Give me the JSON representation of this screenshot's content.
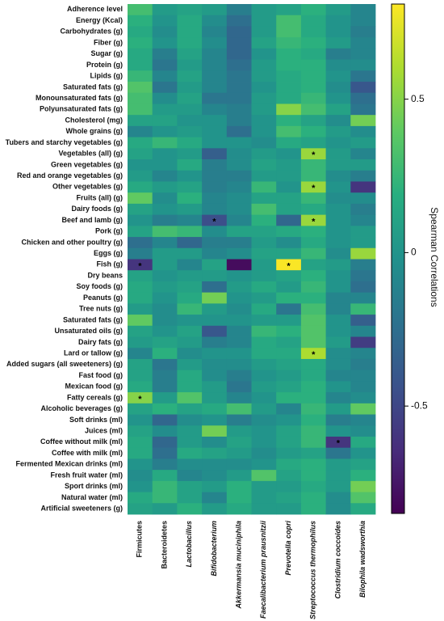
{
  "chart_data": {
    "type": "heatmap",
    "colormap": "viridis",
    "colorbar_label": "Spearman Correlations",
    "zlim": [
      -0.85,
      0.81
    ],
    "zticks": [
      0.5,
      0,
      -0.5
    ],
    "x": [
      "Firmicutes",
      "Bacteroidetes",
      "Lactobacillus",
      "Bifidobacterium",
      "Akkermansia muciniphila",
      "Faecalibacterium prausnitzii",
      "Prevotella copri",
      "Streptococcus thermophilus",
      "Clostridium coccoides",
      "Bilophila wadsworthia"
    ],
    "y": [
      "Adherence level",
      "Energy (Kcal)",
      "Carbohydrates (g)",
      "Fiber (g)",
      "Sugar (g)",
      "Protein (g)",
      "Lipids (g)",
      "Saturated fats (g)",
      "Monounsaturated fats (g)",
      "Polyunsaturated fats (g)",
      "Cholesterol (mg)",
      "Whole grains (g)",
      "Tubers and starchy vegetables (g)",
      "Vegetables (all) (g)",
      "Green vegetables (g)",
      "Red and orange vegetables (g)",
      "Other vegetables (g)",
      "Fruits (all) (g)",
      "Dairy foods (g)",
      "Beef and lamb (g)",
      "Pork (g)",
      "Chicken and other poultry (g)",
      "Eggs (g)",
      "Fish (g)",
      "Dry beans",
      "Soy foods (g)",
      "Peanuts (g)",
      "Tree nuts (g)",
      "Saturated fats (g)",
      "Unsaturated oils (g)",
      "Dairy fats (g)",
      "Lard or tallow (g)",
      "Added sugars (all sweeteners) (g)",
      "Fast food (g)",
      "Mexican food (g)",
      "Fatty cereals (g)",
      "Alcoholic beverages (g)",
      "Soft drinks (ml)",
      "Juices (ml)",
      "Coffee without milk (ml)",
      "Coffee with milk (ml)",
      "Fermented Mexican drinks (ml)",
      "Fresh fruit water (ml)",
      "Sport drinks (ml)",
      "Natural water (ml)",
      "Artificial sweeteners (g)"
    ],
    "values": [
      [
        0.3,
        0.05,
        0.1,
        0.05,
        -0.15,
        0.05,
        0.1,
        0.2,
        0.05,
        -0.1
      ],
      [
        0.2,
        0,
        0.15,
        -0.05,
        -0.25,
        0.05,
        0.3,
        0.15,
        0,
        -0.1
      ],
      [
        0.15,
        -0.05,
        0.15,
        -0.1,
        -0.3,
        0.05,
        0.3,
        0.15,
        0,
        -0.15
      ],
      [
        0.2,
        0,
        0.15,
        -0.05,
        -0.3,
        0.1,
        0.25,
        0.2,
        0.05,
        -0.1
      ],
      [
        0.15,
        -0.15,
        0.1,
        -0.1,
        -0.3,
        0,
        0.2,
        0.15,
        -0.15,
        -0.1
      ],
      [
        0.15,
        -0.2,
        0.05,
        -0.1,
        -0.25,
        0.05,
        0.2,
        0.2,
        -0.05,
        -0.05
      ],
      [
        0.25,
        -0.1,
        0.1,
        -0.1,
        -0.2,
        0.05,
        0.15,
        0.2,
        0,
        -0.2
      ],
      [
        0.35,
        -0.2,
        0.05,
        -0.1,
        -0.2,
        0,
        0.15,
        0.2,
        -0.05,
        -0.4
      ],
      [
        0.3,
        -0.05,
        0.1,
        -0.2,
        -0.2,
        0.05,
        0.15,
        0.25,
        0,
        -0.25
      ],
      [
        0.3,
        0.05,
        0.05,
        -0.1,
        -0.15,
        0.05,
        0.5,
        0.3,
        0.1,
        -0.2
      ],
      [
        0.1,
        0.1,
        0,
        0,
        -0.15,
        0,
        0.2,
        0.1,
        -0.05,
        0.45
      ],
      [
        -0.1,
        0,
        0.05,
        0,
        -0.25,
        0,
        0.3,
        0.2,
        0.05,
        -0.05
      ],
      [
        0.15,
        0.25,
        0.15,
        0,
        0,
        -0.05,
        0.15,
        0.1,
        0,
        0.05
      ],
      [
        0.1,
        0,
        0.05,
        -0.35,
        -0.05,
        0.05,
        0,
        0.55,
        0.05,
        -0.1
      ],
      [
        0,
        0,
        0.15,
        -0.15,
        -0.05,
        0.1,
        0.05,
        0.25,
        0.05,
        0.05
      ],
      [
        0.05,
        -0.1,
        0,
        -0.15,
        -0.15,
        0.05,
        0.05,
        0.25,
        -0.05,
        -0.15
      ],
      [
        0.15,
        0.05,
        0.1,
        -0.15,
        -0.1,
        0.25,
        0,
        0.55,
        0,
        -0.6
      ],
      [
        0.4,
        -0.05,
        0.2,
        -0.1,
        -0.05,
        0.1,
        0.1,
        0.25,
        -0.05,
        -0.05
      ],
      [
        0.1,
        0,
        0.05,
        -0.1,
        -0.05,
        0.3,
        0.1,
        0.15,
        0,
        -0.15
      ],
      [
        0,
        -0.15,
        -0.1,
        -0.45,
        -0.1,
        0.2,
        -0.3,
        0.55,
        0,
        -0.1
      ],
      [
        0.1,
        0.3,
        0.25,
        -0.05,
        0.1,
        0.1,
        0.15,
        0.2,
        0,
        0.05
      ],
      [
        -0.25,
        -0.1,
        -0.3,
        -0.15,
        -0.15,
        0.05,
        -0.05,
        0.15,
        0,
        0.05
      ],
      [
        -0.15,
        0.05,
        0.05,
        -0.1,
        -0.05,
        0.1,
        0.1,
        0.25,
        -0.05,
        0.55
      ],
      [
        -0.6,
        0.05,
        -0.1,
        0.1,
        -0.8,
        0.05,
        0.8,
        0.1,
        0.05,
        -0.15
      ],
      [
        0.1,
        0,
        0.05,
        0.05,
        0,
        0.05,
        0.1,
        0.2,
        0,
        -0.2
      ],
      [
        0.15,
        0.05,
        0.1,
        -0.25,
        0.05,
        0.15,
        0.05,
        0.25,
        0,
        -0.25
      ],
      [
        0.15,
        0,
        0.15,
        0.45,
        0,
        0.05,
        0.2,
        0.2,
        -0.1,
        -0.1
      ],
      [
        0.05,
        -0.05,
        0.25,
        0.05,
        -0.05,
        0.15,
        -0.2,
        0.3,
        -0.1,
        0.25
      ],
      [
        0.4,
        -0.05,
        0,
        0,
        0,
        0.05,
        0.05,
        0.35,
        0,
        -0.35
      ],
      [
        0.1,
        0,
        0.1,
        -0.4,
        -0.1,
        0.25,
        0.2,
        0.35,
        0,
        -0.1
      ],
      [
        0.05,
        0.1,
        0.05,
        -0.15,
        -0.1,
        0.15,
        0.1,
        0.35,
        0.05,
        -0.55
      ],
      [
        -0.1,
        0.2,
        -0.05,
        0,
        0,
        0.15,
        0.15,
        0.6,
        -0.05,
        -0.1
      ],
      [
        0.1,
        -0.2,
        0.05,
        -0.05,
        -0.05,
        0.05,
        0.1,
        0.15,
        -0.05,
        -0.15
      ],
      [
        0.1,
        -0.15,
        0.15,
        -0.05,
        -0.15,
        0,
        0.05,
        0.15,
        -0.1,
        -0.1
      ],
      [
        0.15,
        -0.15,
        0.15,
        0.05,
        -0.2,
        0.05,
        0.1,
        0.2,
        0,
        -0.1
      ],
      [
        0.5,
        0.05,
        0.35,
        0.05,
        -0.1,
        0,
        0.2,
        0.2,
        -0.1,
        -0.05
      ],
      [
        0.1,
        0.2,
        0.1,
        0.15,
        0.3,
        0.05,
        -0.1,
        0.25,
        0.05,
        0.4
      ],
      [
        0,
        -0.3,
        -0.05,
        0,
        -0.15,
        -0.05,
        0,
        0.2,
        -0.15,
        -0.1
      ],
      [
        0.1,
        -0.05,
        0.05,
        0.45,
        0.05,
        0,
        0.1,
        0.25,
        0,
        -0.05
      ],
      [
        0.15,
        -0.3,
        0.05,
        -0.05,
        0.1,
        0,
        0.1,
        0.25,
        -0.6,
        0.15
      ],
      [
        0.15,
        -0.25,
        0.15,
        0.1,
        0.05,
        -0.05,
        0.05,
        0.1,
        -0.2,
        0
      ],
      [
        0,
        -0.15,
        -0.05,
        -0.05,
        -0.05,
        0,
        0.15,
        0.2,
        0.05,
        0.1
      ],
      [
        -0.05,
        0.15,
        -0.1,
        -0.05,
        0.05,
        0.35,
        0.1,
        0.2,
        0.05,
        0.2
      ],
      [
        0,
        0.25,
        0.1,
        0.05,
        0.2,
        0.05,
        0.05,
        0.15,
        0.05,
        0.45
      ],
      [
        0.15,
        0.25,
        0.1,
        -0.1,
        0.2,
        0.05,
        0.1,
        0.2,
        -0.05,
        0.35
      ],
      [
        0.1,
        0.05,
        0.2,
        0.05,
        0.15,
        0.05,
        0.05,
        0.2,
        -0.05,
        0.15
      ]
    ],
    "annotations": [
      {
        "x": "Streptococcus thermophilus",
        "y": "Vegetables (all) (g)",
        "text": "*"
      },
      {
        "x": "Streptococcus thermophilus",
        "y": "Other vegetables (g)",
        "text": "*"
      },
      {
        "x": "Bifidobacterium",
        "y": "Beef and lamb (g)",
        "text": "*"
      },
      {
        "x": "Streptococcus thermophilus",
        "y": "Beef and lamb (g)",
        "text": "*"
      },
      {
        "x": "Firmicutes",
        "y": "Fish (g)",
        "text": "*"
      },
      {
        "x": "Prevotella copri",
        "y": "Fish (g)",
        "text": "*"
      },
      {
        "x": "Streptococcus thermophilus",
        "y": "Lard or tallow (g)",
        "text": "*"
      },
      {
        "x": "Firmicutes",
        "y": "Fatty cereals (g)",
        "text": "*"
      },
      {
        "x": "Clostridium coccoides",
        "y": "Coffee without milk (ml)",
        "text": "*"
      }
    ]
  }
}
